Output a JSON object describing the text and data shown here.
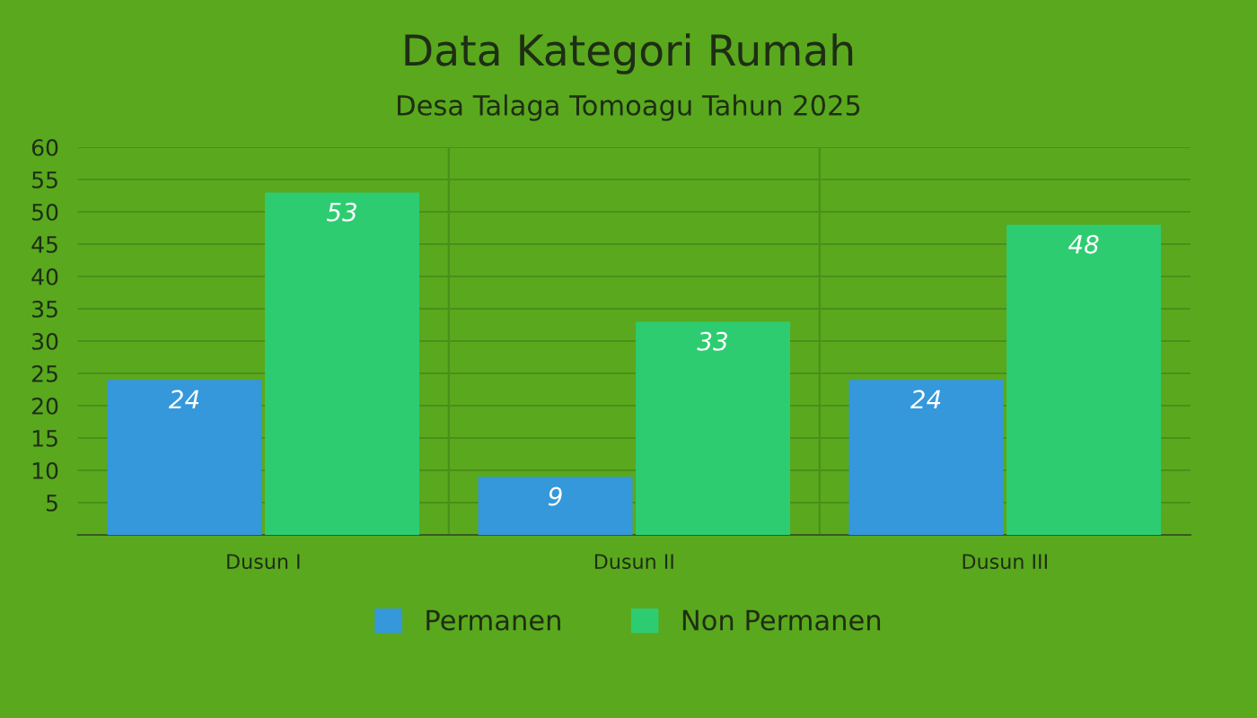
{
  "chart_data": {
    "type": "bar",
    "title": "Data Kategori Rumah",
    "subtitle": "Desa Talaga Tomoagu Tahun 2025",
    "categories": [
      "Dusun I",
      "Dusun II",
      "Dusun III"
    ],
    "series": [
      {
        "name": "Permanen",
        "color": "#3498db",
        "values": [
          24,
          9,
          24
        ]
      },
      {
        "name": "Non Permanen",
        "color": "#2ecc71",
        "values": [
          53,
          33,
          48
        ]
      }
    ],
    "ylim": [
      0,
      60
    ],
    "yticks": [
      5,
      10,
      15,
      20,
      25,
      30,
      35,
      40,
      45,
      50,
      55,
      60
    ],
    "grid": true,
    "legend": "bottom",
    "data_labels": true
  }
}
